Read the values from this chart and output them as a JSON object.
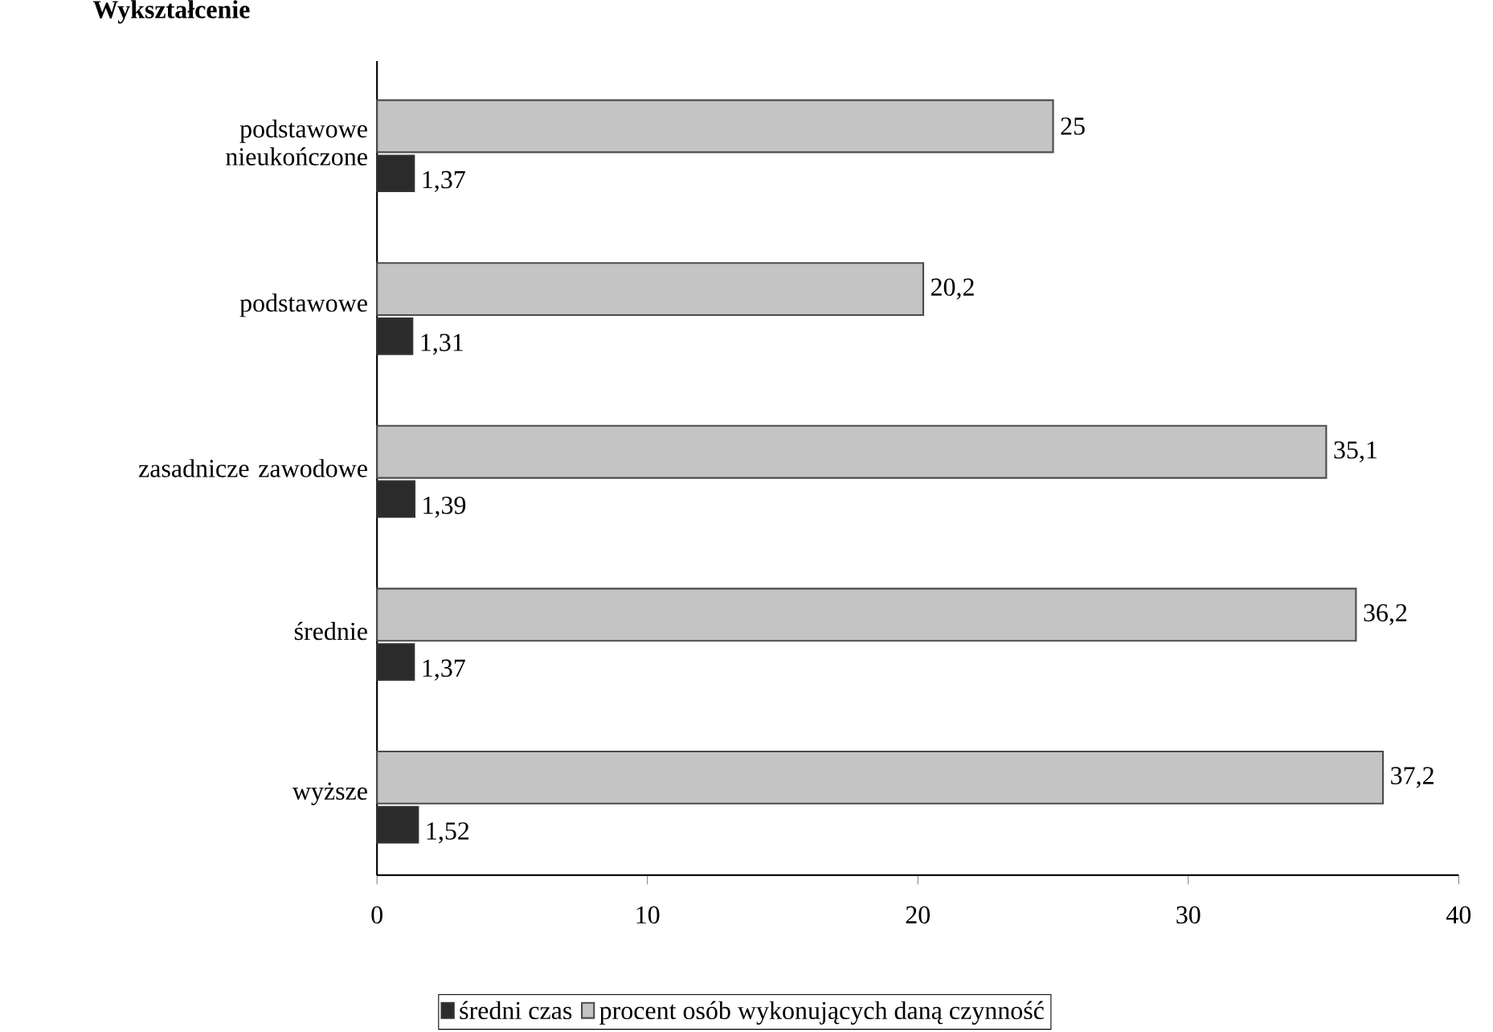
{
  "chart_data": {
    "type": "bar",
    "orientation": "horizontal",
    "ylabel": "Wykształcenie",
    "categories": [
      "podstawowe nieukończone",
      "podstawowe",
      "zasadnicze zawodowe",
      "średnie",
      "wyższe"
    ],
    "series": [
      {
        "name": "średni czas",
        "color": "#2b2b2b",
        "values": [
          1.37,
          1.31,
          1.39,
          1.37,
          1.52
        ],
        "value_labels": [
          "1,37",
          "1,31",
          "1,39",
          "1,37",
          "1,52"
        ]
      },
      {
        "name": "procent osób wykonujących daną czynność",
        "color": "#c4c4c4",
        "values": [
          25,
          20.2,
          35.1,
          36.2,
          37.2
        ],
        "value_labels": [
          "25",
          "20,2",
          "35,1",
          "36,2",
          "37,2"
        ]
      }
    ],
    "xlim": [
      0,
      40
    ],
    "xticks": [
      0,
      10,
      20,
      30,
      40
    ],
    "legend": "bottom"
  }
}
